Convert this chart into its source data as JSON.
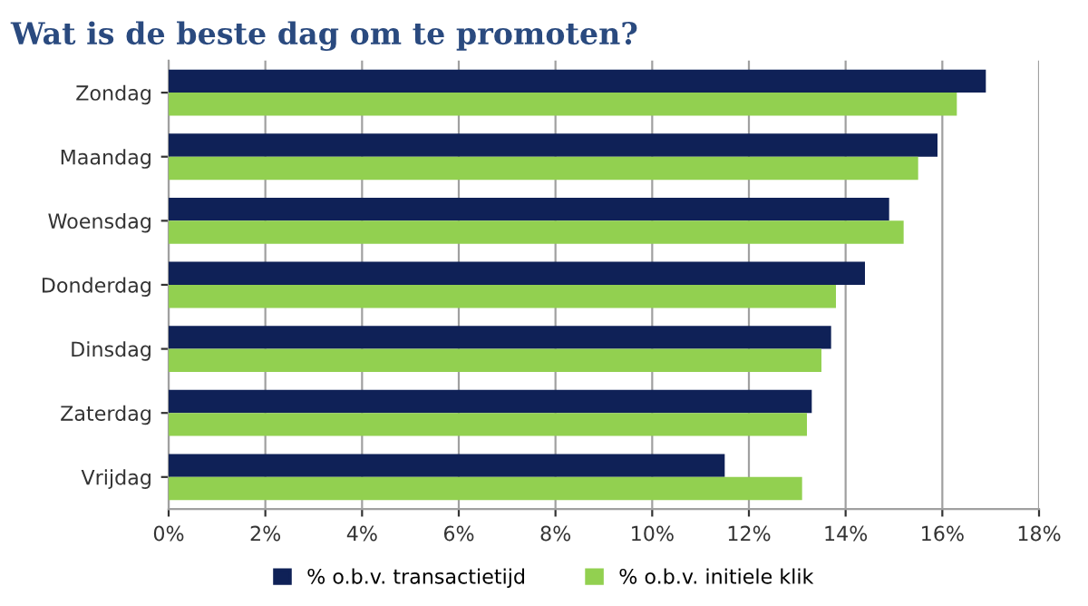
{
  "chart_data": {
    "type": "bar",
    "orientation": "horizontal",
    "title": "Wat is de beste dag om te promoten?",
    "categories": [
      "Zondag",
      "Maandag",
      "Woensdag",
      "Donderdag",
      "Dinsdag",
      "Zaterdag",
      "Vrijdag"
    ],
    "series": [
      {
        "name": "% o.b.v. transactietijd",
        "color": "#0f2157",
        "values": [
          16.9,
          15.9,
          14.9,
          14.4,
          13.7,
          13.3,
          11.5
        ]
      },
      {
        "name": "% o.b.v. initiele klik",
        "color": "#92d050",
        "values": [
          16.3,
          15.5,
          15.2,
          13.8,
          13.5,
          13.2,
          13.1
        ]
      }
    ],
    "xlim": [
      0,
      18
    ],
    "xticks": [
      {
        "value": 0,
        "label": "0%"
      },
      {
        "value": 2,
        "label": "2%"
      },
      {
        "value": 4,
        "label": "4%"
      },
      {
        "value": 6,
        "label": "6%"
      },
      {
        "value": 8,
        "label": "8%"
      },
      {
        "value": 10,
        "label": "10%"
      },
      {
        "value": 12,
        "label": "12%"
      },
      {
        "value": 14,
        "label": "14%"
      },
      {
        "value": 16,
        "label": "16%"
      },
      {
        "value": 18,
        "label": "18%"
      }
    ],
    "grid": "x",
    "legend": "bottom"
  }
}
